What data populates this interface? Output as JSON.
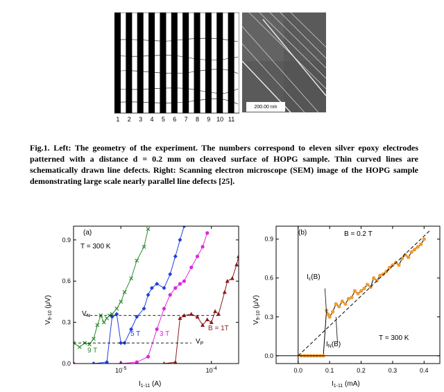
{
  "figure1": {
    "electrode_numbers": [
      "1",
      "2",
      "3",
      "4",
      "5",
      "6",
      "7",
      "8",
      "9",
      "10",
      "11"
    ],
    "sem_scale_label": "200.00 nm"
  },
  "caption": {
    "text": "Fig.1. Left: The geometry of the experiment. The numbers correspond to eleven silver epoxy electrodes patterned with a distance d = 0.2 mm on cleaved surface of HOPG sample. Thin curved lines are schematically drawn line defects. Right: Scanning electron microscope (SEM) image of the HOPG sample demonstrating large scale nearly parallel line defects [25]."
  },
  "colors": {
    "green": "#2e8b2e",
    "blue": "#1f3fd9",
    "magenta": "#e026e0",
    "darkred": "#8b1a1a",
    "orange": "#f29a2e"
  },
  "chart_data": [
    {
      "type": "line",
      "panel_label": "(a)",
      "xlabel": "I1-11 (A)",
      "ylabel": "V9-10 (μV)",
      "xscale": "log",
      "xlim": [
        3e-06,
        0.0002
      ],
      "ylim": [
        0,
        1.0
      ],
      "xticks": [
        {
          "v": 1e-05,
          "label": "10-5"
        },
        {
          "v": 0.0001,
          "label": "10-4"
        }
      ],
      "yticks": [
        {
          "v": 0,
          "label": "0.0"
        },
        {
          "v": 0.3,
          "label": "0.3"
        },
        {
          "v": 0.6,
          "label": "0.6"
        },
        {
          "v": 0.9,
          "label": "0.9"
        }
      ],
      "annotations": [
        "T = 300 K",
        "VN",
        "VP"
      ],
      "series": [
        {
          "name": "9 T",
          "color": "#2e8b2e",
          "marker": "x",
          "x": [
            3e-06,
            3.5e-06,
            4e-06,
            4.5e-06,
            5e-06,
            5.5e-06,
            6e-06,
            6.5e-06,
            7e-06,
            7.5e-06,
            8e-06,
            9e-06,
            1e-05,
            1.1e-05,
            1.3e-05,
            1.5e-05,
            1.8e-05,
            2e-05
          ],
          "y": [
            0.15,
            0.12,
            0.15,
            0.14,
            0.18,
            0.28,
            0.35,
            0.3,
            0.33,
            0.35,
            0.36,
            0.4,
            0.45,
            0.52,
            0.62,
            0.75,
            0.85,
            0.98
          ]
        },
        {
          "name": "5 T",
          "color": "#1f3fd9",
          "marker": "diamond",
          "x": [
            3e-06,
            5e-06,
            7e-06,
            8e-06,
            9e-06,
            1e-05,
            1.1e-05,
            1.3e-05,
            1.5e-05,
            1.8e-05,
            2e-05,
            2.2e-05,
            2.5e-05,
            3e-05,
            3.5e-05,
            4e-05,
            4.5e-05,
            5e-05
          ],
          "y": [
            0.0,
            0.0,
            0.01,
            0.34,
            0.36,
            0.15,
            0.15,
            0.25,
            0.34,
            0.4,
            0.5,
            0.55,
            0.58,
            0.55,
            0.65,
            0.78,
            0.9,
            1.0
          ]
        },
        {
          "name": "3 T",
          "color": "#e026e0",
          "marker": "circle",
          "x": [
            3e-06,
            1e-05,
            1.5e-05,
            2e-05,
            2.5e-05,
            3e-05,
            3.5e-05,
            4e-05,
            4.5e-05,
            5e-05,
            6e-05,
            7e-05,
            8e-05,
            9e-05
          ],
          "y": [
            0.0,
            0.0,
            0.01,
            0.05,
            0.25,
            0.4,
            0.5,
            0.55,
            0.58,
            0.6,
            0.7,
            0.78,
            0.85,
            0.95
          ]
        },
        {
          "name": "B = 1T",
          "color": "#8b1a1a",
          "marker": "triangle",
          "x": [
            3e-06,
            3e-05,
            4e-05,
            4.5e-05,
            5e-05,
            6e-05,
            7e-05,
            8e-05,
            9e-05,
            0.0001,
            0.00011,
            0.00012,
            0.00014,
            0.00015,
            0.00017,
            0.00019,
            0.0002
          ],
          "y": [
            0.0,
            0.0,
            0.01,
            0.33,
            0.35,
            0.36,
            0.34,
            0.28,
            0.32,
            0.3,
            0.38,
            0.36,
            0.52,
            0.6,
            0.62,
            0.72,
            0.78
          ]
        }
      ]
    },
    {
      "type": "scatter",
      "panel_label": "(b)",
      "xlabel": "I1-11 (mA)",
      "ylabel": "V9-10 (μV)",
      "xlim": [
        -0.07,
        0.45
      ],
      "ylim": [
        -0.06,
        1.0
      ],
      "xticks": [
        {
          "v": 0.0,
          "label": "0.0"
        },
        {
          "v": 0.1,
          "label": "0.1"
        },
        {
          "v": 0.2,
          "label": "0.2"
        },
        {
          "v": 0.3,
          "label": "0.3"
        },
        {
          "v": 0.4,
          "label": "0.4"
        }
      ],
      "yticks": [
        {
          "v": 0.0,
          "label": "0.0"
        },
        {
          "v": 0.3,
          "label": "0.3"
        },
        {
          "v": 0.6,
          "label": "0.6"
        },
        {
          "v": 0.9,
          "label": "0.9"
        }
      ],
      "annotations": [
        "B = 0.2 T",
        "T = 300 K",
        "Ic(B)",
        "IN(B)"
      ],
      "series": [
        {
          "name": "",
          "color": "#f29a2e",
          "x": [
            0.01,
            0.02,
            0.03,
            0.04,
            0.05,
            0.06,
            0.07,
            0.08,
            0.09,
            0.095,
            0.1,
            0.11,
            0.12,
            0.13,
            0.14,
            0.15,
            0.16,
            0.17,
            0.18,
            0.19,
            0.2,
            0.21,
            0.22,
            0.23,
            0.24,
            0.25,
            0.26,
            0.27,
            0.28,
            0.29,
            0.3,
            0.31,
            0.32,
            0.33,
            0.34,
            0.35,
            0.36,
            0.37,
            0.38,
            0.39,
            0.4
          ],
          "y": [
            0.0,
            0.0,
            0.0,
            0.0,
            0.0,
            0.0,
            0.0,
            0.0,
            0.35,
            0.32,
            0.3,
            0.34,
            0.4,
            0.38,
            0.42,
            0.4,
            0.44,
            0.45,
            0.5,
            0.48,
            0.5,
            0.52,
            0.55,
            0.53,
            0.6,
            0.58,
            0.62,
            0.63,
            0.65,
            0.68,
            0.7,
            0.72,
            0.7,
            0.75,
            0.78,
            0.76,
            0.8,
            0.82,
            0.84,
            0.86,
            0.9
          ]
        }
      ]
    }
  ],
  "plot_a_text": {
    "panel": "(a)",
    "temp": "T = 300 K",
    "vn": "V",
    "vn_sub": "N",
    "vp": "V",
    "vp_sub": "P",
    "s9": "9 T",
    "s5": "5 T",
    "s3": "3 T",
    "s1": "B = 1T",
    "ylabel_main": "V",
    "ylabel_sub": "9-10",
    "ylabel_unit": " (μV)",
    "xlabel_main": "I",
    "xlabel_sub": "1-11",
    "xlabel_unit": " (A)"
  },
  "plot_b_text": {
    "panel": "(b)",
    "field": "B = 0.2 T",
    "temp": "T = 300 K",
    "ic": "I",
    "ic_sub": "c",
    "ic_tail": "(B)",
    "in": "I",
    "in_sub": "N",
    "in_tail": "(B)",
    "ylabel_main": "V",
    "ylabel_sub": "9-10",
    "ylabel_unit": " (μV)",
    "xlabel_main": "I",
    "xlabel_sub": "1-11",
    "xlabel_unit": " (mA)"
  }
}
